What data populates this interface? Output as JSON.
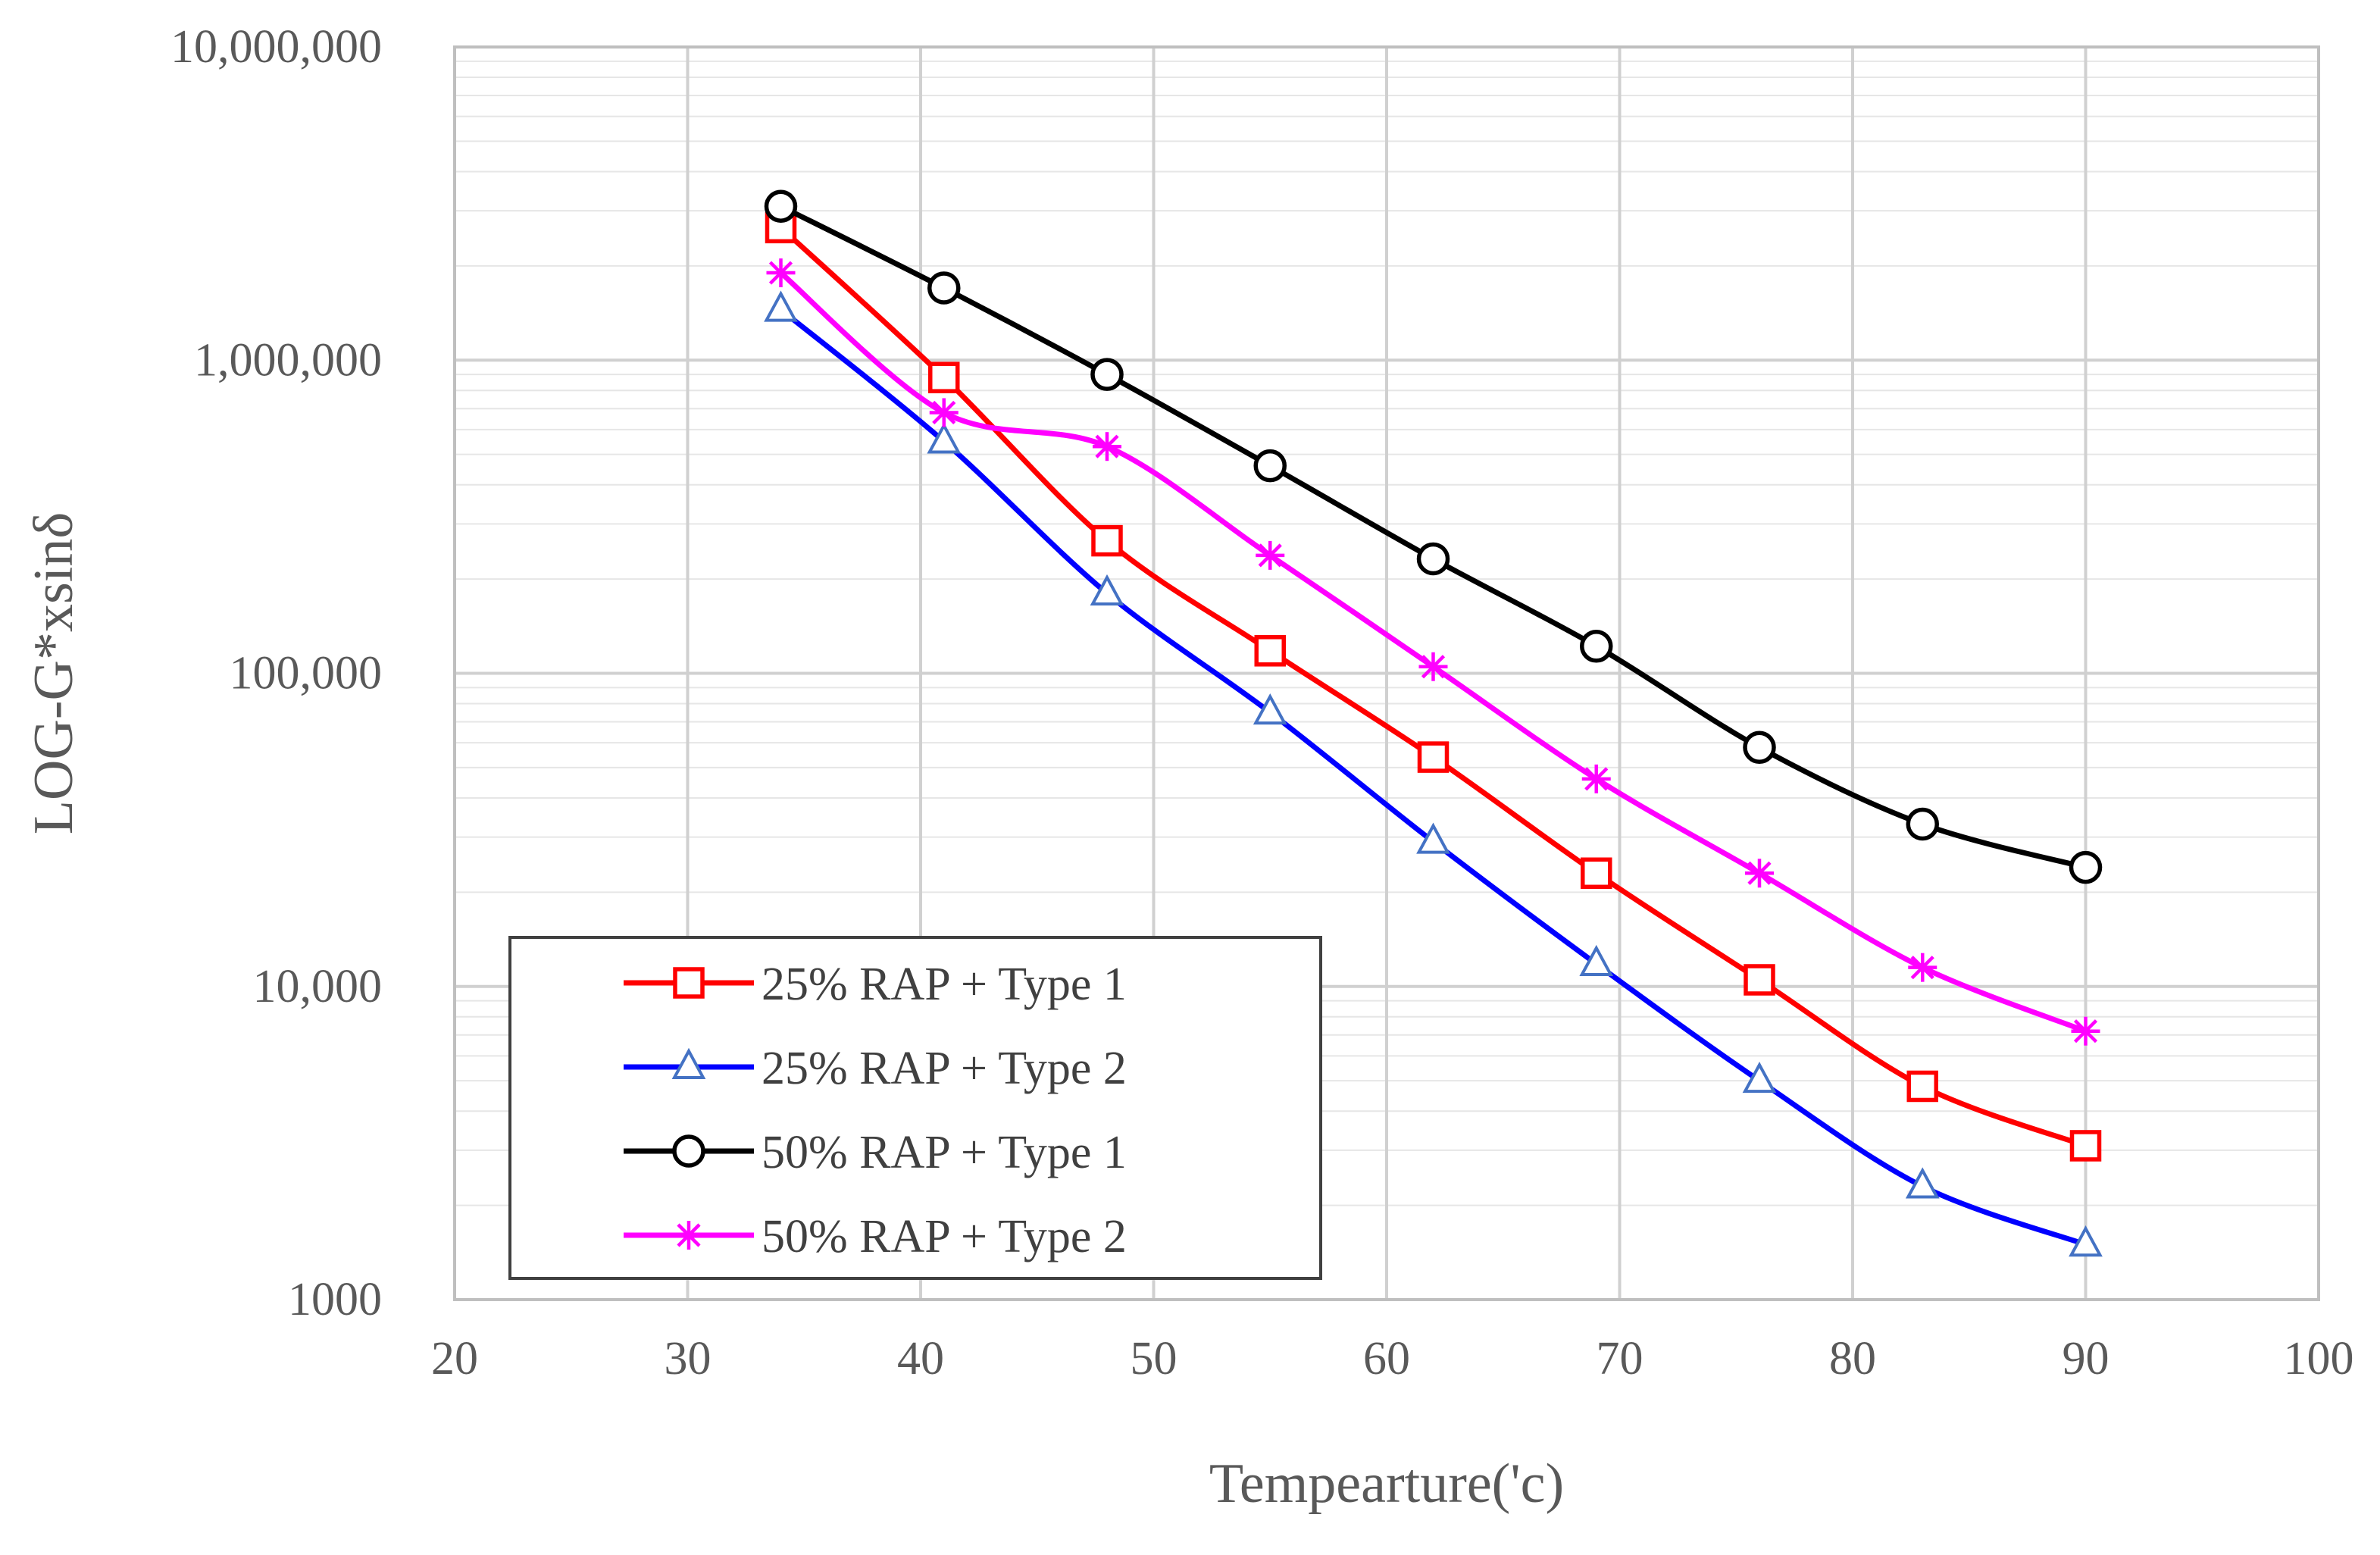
{
  "chart_data": {
    "type": "line",
    "title": "",
    "xlabel": "Tempearture('c)",
    "ylabel": "LOG-G*xsinδ",
    "xlim": [
      20,
      100
    ],
    "ylim": [
      1000,
      10000000
    ],
    "yscale": "log",
    "x_ticks": [
      20,
      30,
      40,
      50,
      60,
      70,
      80,
      90,
      100
    ],
    "x_tick_labels": [
      "20",
      "30",
      "40",
      "50",
      "60",
      "70",
      "80",
      "90",
      "100"
    ],
    "y_ticks": [
      1000,
      10000,
      100000,
      1000000,
      10000000
    ],
    "y_tick_labels": [
      "1000",
      "10,000",
      "100,000",
      "1,000,000",
      "10,000,000"
    ],
    "grid": true,
    "legend_position": "bottom-left",
    "x": [
      34,
      41,
      48,
      55,
      62,
      69,
      76,
      83,
      90
    ],
    "series": [
      {
        "name": "25% RAP + Type 1",
        "color": "#ff0000",
        "marker": "square",
        "values": [
          2650000,
          880000,
          265000,
          118000,
          54000,
          23000,
          10500,
          4800,
          3100
        ]
      },
      {
        "name": "25% RAP + Type 2",
        "color": "#0000ff",
        "marker": "triangle",
        "values": [
          1450000,
          550000,
          180000,
          75000,
          29000,
          11800,
          5000,
          2300,
          1500
        ]
      },
      {
        "name": "50% RAP + Type 1",
        "color": "#000000",
        "marker": "circle",
        "values": [
          3100000,
          1700000,
          900000,
          460000,
          232000,
          122000,
          58000,
          33000,
          24000
        ]
      },
      {
        "name": "50% RAP + Type 2",
        "color": "#ff00ff",
        "marker": "star",
        "values": [
          1900000,
          680000,
          530000,
          238000,
          105000,
          46000,
          23000,
          11500,
          7200
        ]
      }
    ]
  }
}
